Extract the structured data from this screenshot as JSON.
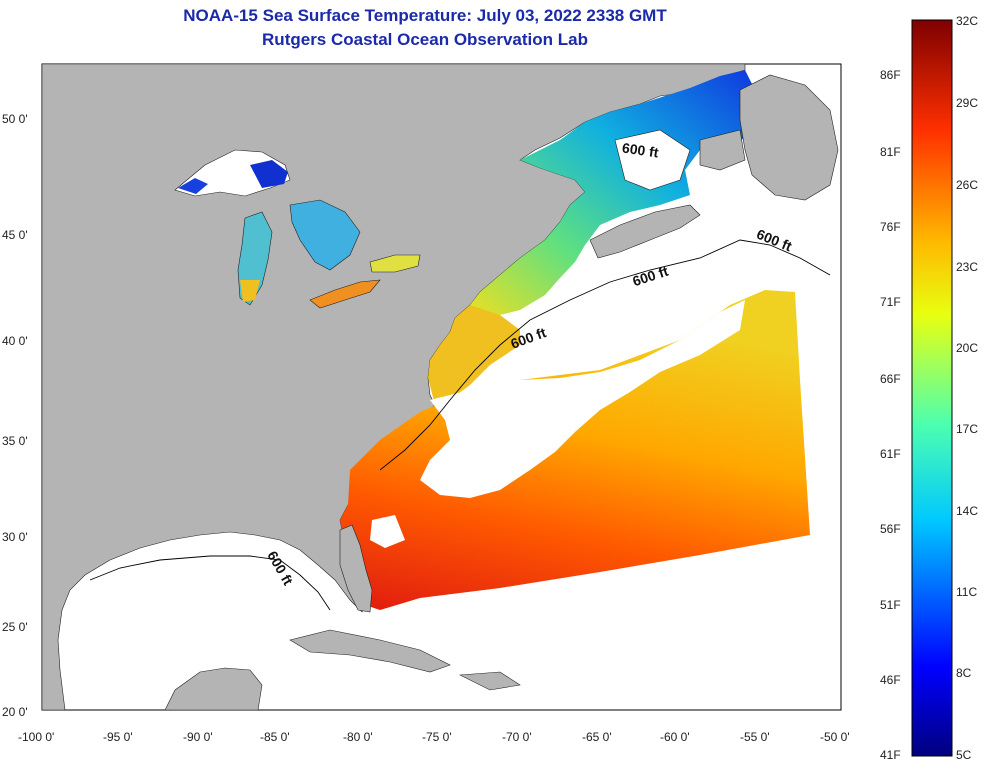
{
  "title": "NOAA-15 Sea Surface Temperature:  July 03, 2022 2338 GMT",
  "subtitle": "Rutgers Coastal Ocean Observation Lab",
  "lon_labels": [
    "-100 0'",
    "-95 0'",
    "-90 0'",
    "-85 0'",
    "-80 0'",
    "-75 0'",
    "-70 0'",
    "-65 0'",
    "-60 0'",
    "-55 0'",
    "-50 0'"
  ],
  "lat_labels": [
    "50 0'",
    "45 0'",
    "40 0'",
    "35 0'",
    "30 0'",
    "25 0'",
    "20 0'"
  ],
  "contour_labels": [
    "600 ft",
    "600 ft",
    "600 ft",
    "600 ft",
    "600 ft"
  ],
  "colorbar": {
    "fahrenheit": [
      "86F",
      "81F",
      "76F",
      "71F",
      "66F",
      "61F",
      "56F",
      "51F",
      "46F",
      "41F"
    ],
    "celsius": [
      "32C",
      "29C",
      "26C",
      "23C",
      "20C",
      "17C",
      "14C",
      "11C",
      "8C",
      "5C"
    ]
  },
  "colors": {
    "land": "#b4b4b4",
    "cloud": "#ffffff",
    "title": "#1a2aa8"
  }
}
